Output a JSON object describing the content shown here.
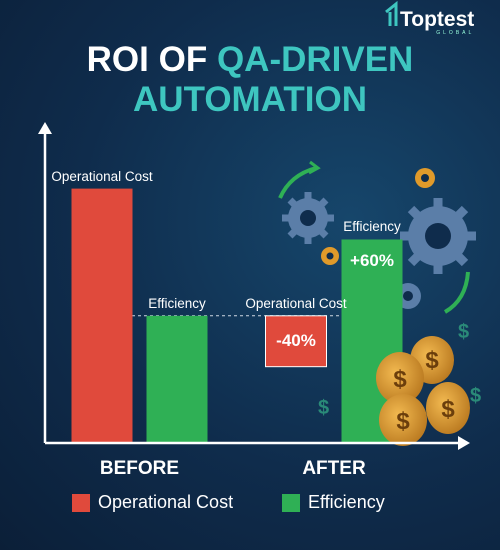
{
  "logo": {
    "name": "Toptest",
    "tagline": "GLOBAL"
  },
  "chart_data": {
    "type": "bar",
    "title": {
      "lead": "ROI OF",
      "highlight": "QA-DRIVEN AUTOMATION"
    },
    "categories": [
      "BEFORE",
      "AFTER"
    ],
    "series": [
      {
        "name": "Operational Cost",
        "color": "#e04a3c",
        "values": [
          200,
          -40
        ],
        "value_labels": [
          null,
          "-40%"
        ]
      },
      {
        "name": "Efficiency",
        "color": "#2fb055",
        "values": [
          100,
          60
        ],
        "value_labels": [
          null,
          "+60%"
        ]
      }
    ],
    "ylim": [
      0,
      250
    ],
    "legend": "bottom"
  }
}
